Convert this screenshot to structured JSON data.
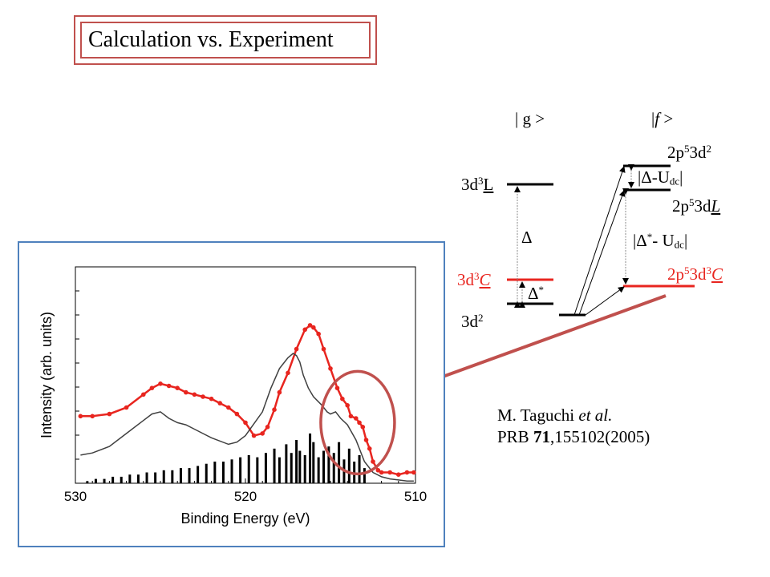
{
  "title": "Calculation vs. Experiment",
  "diagram": {
    "ket_g": "| g >",
    "ket_f_bar": "|",
    "ket_f_letter": "f",
    "ket_f_close": " >",
    "level_3d3L": {
      "base": "3d",
      "sup": "3",
      "under": "L"
    },
    "level_3d3C": {
      "base": "3d",
      "sup": "3",
      "under": "C"
    },
    "level_3d2": {
      "base": "3d",
      "sup": "2"
    },
    "level_2p53d2": {
      "a": "2p",
      "sup1": "5",
      "b": "3d",
      "sup2": "2"
    },
    "level_2p53dL": {
      "a": "2p",
      "sup1": "5",
      "b": "3d",
      "under": "L"
    },
    "level_2p53d3C": {
      "a": "2p",
      "sup1": "5",
      "b": "3d",
      "sup2": "3",
      "under": "C"
    },
    "delta": "Δ",
    "delta_star": "Δ",
    "star": "*",
    "delta_udc": {
      "pre": "|Δ-U",
      "sub": "dc",
      "post": "|"
    },
    "delta_star_udc": {
      "pre": "|Δ",
      "star": "*",
      "mid": "- U",
      "sub": "dc",
      "post": "|"
    },
    "colors": {
      "red": "#e8251f",
      "frame_blue": "#4f81bd",
      "arrow": "#c0504d"
    }
  },
  "reference": {
    "author": "M. Taguchi ",
    "etal": "et al.",
    "journal": "PRB ",
    "volume": "71",
    "pages": ",155102(2005)"
  },
  "chart_data": {
    "type": "line",
    "xlabel": "Binding Energy (eV)",
    "ylabel": "Intensity (arb. units)",
    "xlim": [
      530,
      510
    ],
    "ylim": [
      0,
      1
    ],
    "x_reversed": true,
    "xticks": [
      "530",
      "520",
      "510"
    ],
    "grid": false,
    "series": [
      {
        "style": "red-dots-experiment",
        "color": "#e8251f",
        "x": [
          529.7,
          529,
          528,
          527,
          526,
          525.5,
          525,
          524.5,
          524,
          523.5,
          523,
          522.5,
          522,
          521.5,
          521,
          520.5,
          520,
          519.5,
          519,
          518.7,
          518.3,
          518,
          517.5,
          517,
          516.5,
          516.2,
          516,
          515.7,
          515.4,
          515,
          514.6,
          514.3,
          514,
          513.8,
          513.5,
          513.3,
          513.1,
          512.9,
          512.7,
          512.5,
          512.2,
          512,
          511.5,
          511,
          510.5,
          510.1
        ],
        "y": [
          0.31,
          0.31,
          0.32,
          0.35,
          0.41,
          0.44,
          0.46,
          0.45,
          0.44,
          0.42,
          0.41,
          0.4,
          0.39,
          0.37,
          0.35,
          0.32,
          0.28,
          0.22,
          0.23,
          0.26,
          0.34,
          0.42,
          0.51,
          0.62,
          0.71,
          0.73,
          0.72,
          0.69,
          0.62,
          0.53,
          0.44,
          0.39,
          0.36,
          0.31,
          0.3,
          0.28,
          0.26,
          0.2,
          0.16,
          0.1,
          0.06,
          0.05,
          0.05,
          0.04,
          0.05,
          0.05
        ]
      },
      {
        "style": "gray-line-calculation",
        "color": "#404040",
        "x": [
          529.7,
          529,
          528,
          527,
          526,
          525.5,
          525,
          524.5,
          524,
          523.5,
          523,
          522,
          521,
          520.5,
          520,
          519,
          518.5,
          518,
          517.5,
          517.2,
          517,
          516.8,
          516.6,
          516.3,
          516,
          515.5,
          515.2,
          515,
          514.7,
          514.4,
          514,
          513.5,
          513,
          512.5,
          512,
          511.5,
          511,
          510.5,
          510.1
        ],
        "y": [
          0.13,
          0.14,
          0.17,
          0.23,
          0.29,
          0.32,
          0.33,
          0.3,
          0.28,
          0.27,
          0.25,
          0.21,
          0.18,
          0.19,
          0.22,
          0.33,
          0.44,
          0.53,
          0.58,
          0.6,
          0.59,
          0.56,
          0.5,
          0.44,
          0.4,
          0.36,
          0.33,
          0.32,
          0.33,
          0.3,
          0.27,
          0.2,
          0.1,
          0.05,
          0.03,
          0.02,
          0.015,
          0.01,
          0.01
        ]
      }
    ],
    "sticks": {
      "style": "black-stick-spectrum",
      "x": [
        529.3,
        528.8,
        528.3,
        527.8,
        527.3,
        526.8,
        526.3,
        525.8,
        525.3,
        524.8,
        524.3,
        523.8,
        523.3,
        522.8,
        522.3,
        521.8,
        521.3,
        520.8,
        520.3,
        519.8,
        519.3,
        518.8,
        518.3,
        518,
        517.6,
        517.3,
        517,
        516.8,
        516.5,
        516.2,
        516,
        515.7,
        515.4,
        515.1,
        514.8,
        514.5,
        514.2,
        513.9,
        513.6,
        513.3,
        513
      ],
      "y": [
        0.01,
        0.02,
        0.02,
        0.03,
        0.03,
        0.04,
        0.04,
        0.05,
        0.05,
        0.06,
        0.06,
        0.07,
        0.07,
        0.08,
        0.09,
        0.1,
        0.1,
        0.11,
        0.12,
        0.13,
        0.12,
        0.14,
        0.16,
        0.12,
        0.18,
        0.14,
        0.2,
        0.15,
        0.13,
        0.23,
        0.19,
        0.12,
        0.15,
        0.17,
        0.14,
        0.19,
        0.11,
        0.16,
        0.1,
        0.13,
        0.07
      ]
    }
  }
}
